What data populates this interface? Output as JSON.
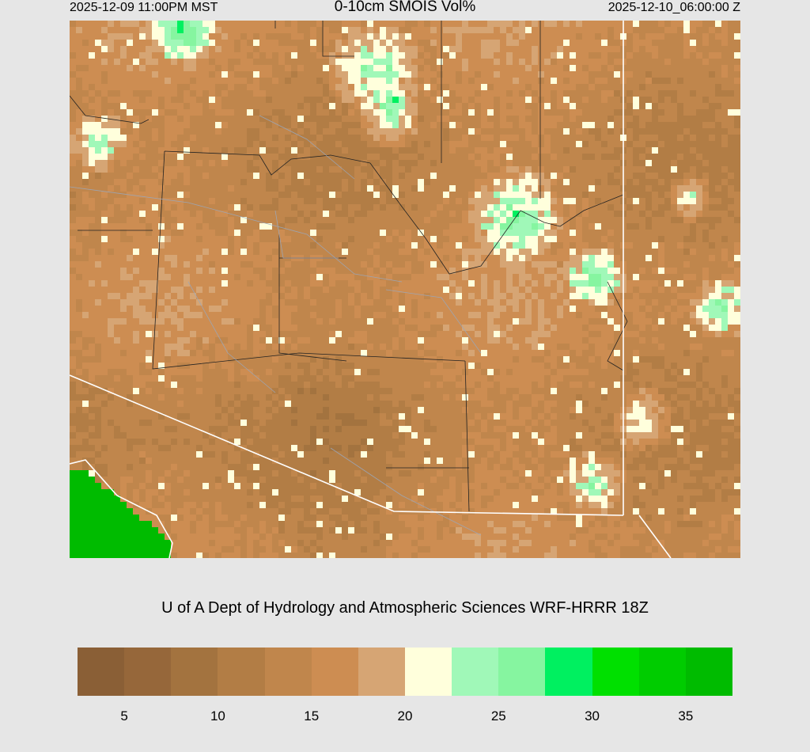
{
  "header": {
    "local_time": "2025-12-09 11:00PM MST",
    "title": "0-10cm SMOIS Vol%",
    "valid_time": "2025-12-10_06:00:00 Z"
  },
  "credit": "U of A Dept of Hydrology and Atmospheric Sciences WRF-HRRR 18Z",
  "colorbar": {
    "range": [
      2.5,
      37.5
    ],
    "interval": 2.5,
    "colors": [
      "#8a5f36",
      "#96673a",
      "#a3733f",
      "#b27d45",
      "#c0864c",
      "#cd8d52",
      "#d6a574",
      "#ffffdc",
      "#a0f8b8",
      "#86f5a0",
      "#00f060",
      "#00e000",
      "#00cc00",
      "#00bb00"
    ],
    "tick_labels": [
      "5",
      "10",
      "15",
      "20",
      "25",
      "30",
      "35"
    ]
  }
}
